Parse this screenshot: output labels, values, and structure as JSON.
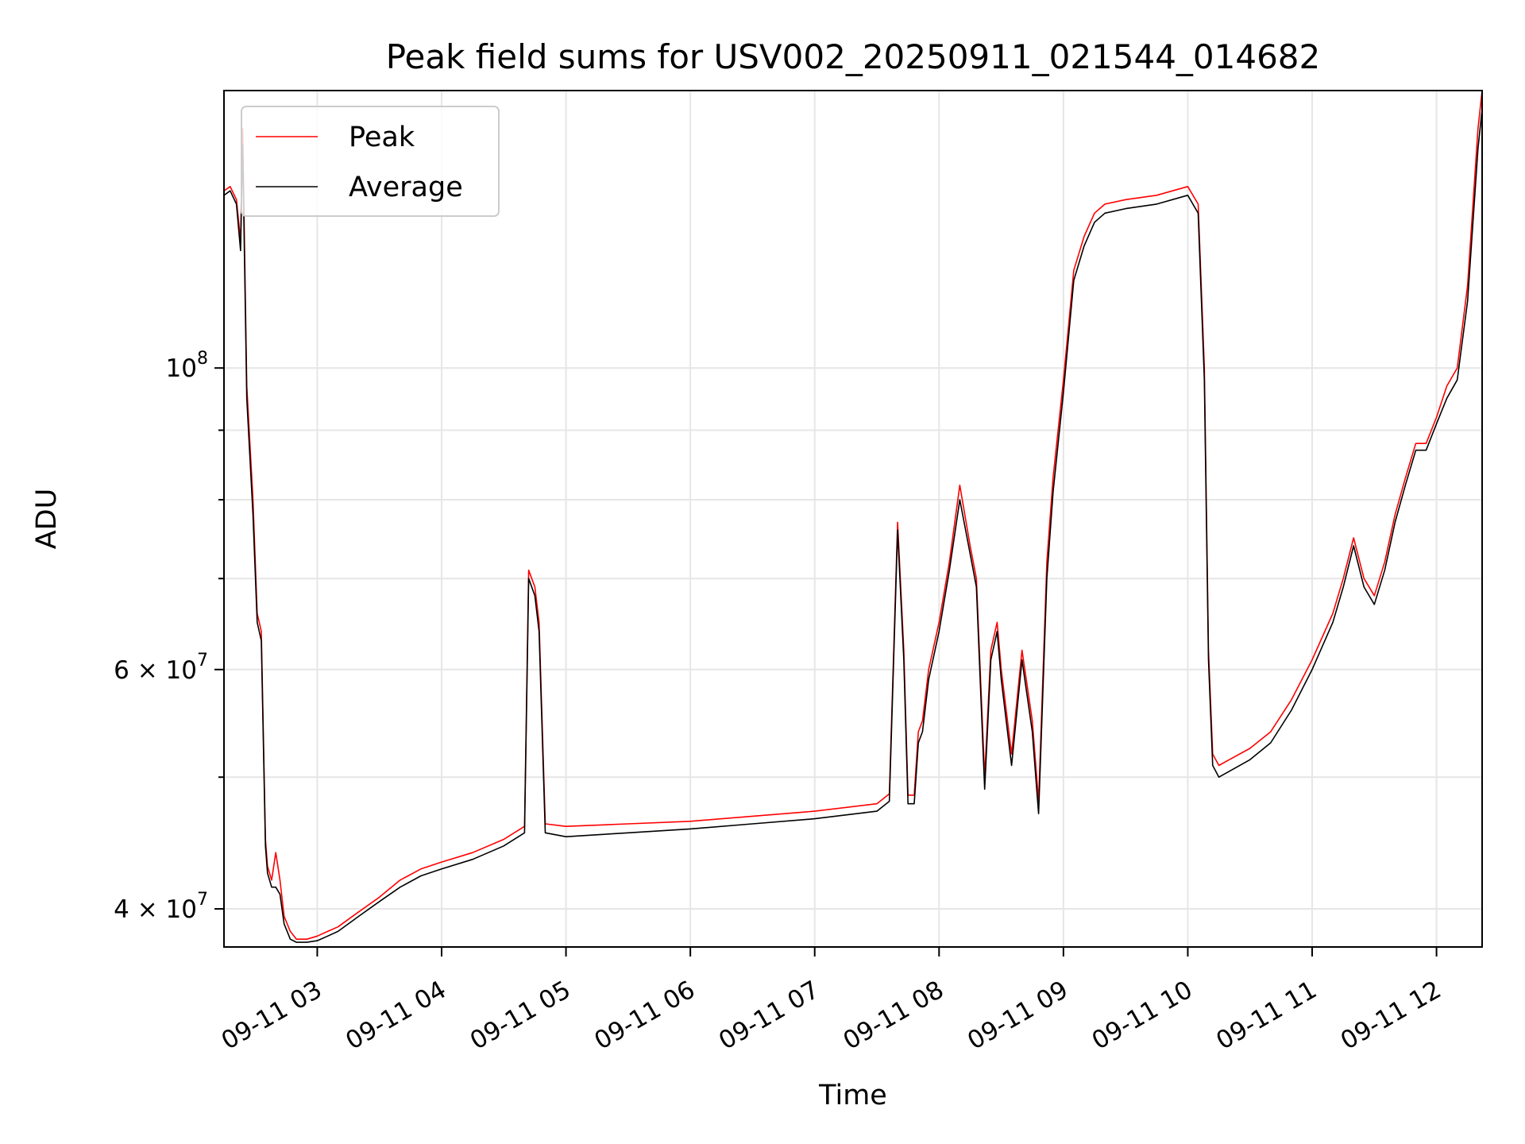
{
  "chart_data": {
    "type": "line",
    "title": "Peak field sums for USV002_20250911_021544_014682",
    "xlabel": "Time",
    "ylabel": "ADU",
    "y_scale": "log",
    "ylim": [
      37500000,
      160000000
    ],
    "xlim": [
      "2025-09-11 02:15",
      "2025-09-11 12:22"
    ],
    "grid": true,
    "legend_position": "top-left",
    "x_ticks": [
      {
        "value": "2025-09-11 03:00",
        "label": "09-11 03"
      },
      {
        "value": "2025-09-11 04:00",
        "label": "09-11 04"
      },
      {
        "value": "2025-09-11 05:00",
        "label": "09-11 05"
      },
      {
        "value": "2025-09-11 06:00",
        "label": "09-11 06"
      },
      {
        "value": "2025-09-11 07:00",
        "label": "09-11 07"
      },
      {
        "value": "2025-09-11 08:00",
        "label": "09-11 08"
      },
      {
        "value": "2025-09-11 09:00",
        "label": "09-11 09"
      },
      {
        "value": "2025-09-11 10:00",
        "label": "09-11 10"
      },
      {
        "value": "2025-09-11 11:00",
        "label": "09-11 11"
      },
      {
        "value": "2025-09-11 12:00",
        "label": "09-11 12"
      }
    ],
    "y_major_ticks": [
      {
        "value": 40000000,
        "mantissa": "4",
        "exponent": "7"
      },
      {
        "value": 60000000,
        "mantissa": "6",
        "exponent": "7"
      },
      {
        "value": 100000000,
        "mantissa": "",
        "exponent": "8"
      }
    ],
    "y_minor_ticks": [
      50000000,
      70000000,
      80000000,
      90000000
    ],
    "series": [
      {
        "name": "Peak",
        "color": "#ff0000",
        "x": [
          "2025-09-11 02:15",
          "2025-09-11 02:18",
          "2025-09-11 02:21",
          "2025-09-11 02:23",
          "2025-09-11 02:24",
          "2025-09-11 02:26",
          "2025-09-11 02:29",
          "2025-09-11 02:31",
          "2025-09-11 02:33",
          "2025-09-11 02:35",
          "2025-09-11 02:36",
          "2025-09-11 02:38",
          "2025-09-11 02:40",
          "2025-09-11 02:42",
          "2025-09-11 02:44",
          "2025-09-11 02:47",
          "2025-09-11 02:50",
          "2025-09-11 02:55",
          "2025-09-11 03:00",
          "2025-09-11 03:05",
          "2025-09-11 03:10",
          "2025-09-11 03:15",
          "2025-09-11 03:20",
          "2025-09-11 03:30",
          "2025-09-11 03:40",
          "2025-09-11 03:50",
          "2025-09-11 04:00",
          "2025-09-11 04:15",
          "2025-09-11 04:30",
          "2025-09-11 04:40",
          "2025-09-11 04:42",
          "2025-09-11 04:45",
          "2025-09-11 04:47",
          "2025-09-11 04:50",
          "2025-09-11 05:00",
          "2025-09-11 05:30",
          "2025-09-11 06:00",
          "2025-09-11 06:30",
          "2025-09-11 07:00",
          "2025-09-11 07:30",
          "2025-09-11 07:36",
          "2025-09-11 07:40",
          "2025-09-11 07:43",
          "2025-09-11 07:45",
          "2025-09-11 07:48",
          "2025-09-11 07:50",
          "2025-09-11 07:52",
          "2025-09-11 07:55",
          "2025-09-11 08:00",
          "2025-09-11 08:05",
          "2025-09-11 08:10",
          "2025-09-11 08:15",
          "2025-09-11 08:18",
          "2025-09-11 08:22",
          "2025-09-11 08:25",
          "2025-09-11 08:28",
          "2025-09-11 08:30",
          "2025-09-11 08:35",
          "2025-09-11 08:40",
          "2025-09-11 08:45",
          "2025-09-11 08:48",
          "2025-09-11 08:52",
          "2025-09-11 08:55",
          "2025-09-11 09:00",
          "2025-09-11 09:05",
          "2025-09-11 09:10",
          "2025-09-11 09:15",
          "2025-09-11 09:20",
          "2025-09-11 09:30",
          "2025-09-11 09:45",
          "2025-09-11 10:00",
          "2025-09-11 10:05",
          "2025-09-11 10:08",
          "2025-09-11 10:10",
          "2025-09-11 10:12",
          "2025-09-11 10:15",
          "2025-09-11 10:20",
          "2025-09-11 10:30",
          "2025-09-11 10:40",
          "2025-09-11 10:50",
          "2025-09-11 11:00",
          "2025-09-11 11:10",
          "2025-09-11 11:15",
          "2025-09-11 11:20",
          "2025-09-11 11:25",
          "2025-09-11 11:30",
          "2025-09-11 11:35",
          "2025-09-11 11:40",
          "2025-09-11 11:45",
          "2025-09-11 11:50",
          "2025-09-11 11:55",
          "2025-09-11 12:00",
          "2025-09-11 12:05",
          "2025-09-11 12:10",
          "2025-09-11 12:15",
          "2025-09-11 12:20",
          "2025-09-11 12:22"
        ],
        "y": [
          135000000,
          136000000,
          133000000,
          124000000,
          150000000,
          97000000,
          80000000,
          66000000,
          64000000,
          45000000,
          43000000,
          42000000,
          44000000,
          42000000,
          39500000,
          38500000,
          38000000,
          38000000,
          38200000,
          38500000,
          38800000,
          39300000,
          39800000,
          40800000,
          42000000,
          42800000,
          43300000,
          44000000,
          45000000,
          46000000,
          71000000,
          69000000,
          65000000,
          46200000,
          46000000,
          46200000,
          46400000,
          46800000,
          47200000,
          47800000,
          48600000,
          77000000,
          62000000,
          48500000,
          48500000,
          54000000,
          55000000,
          60000000,
          65000000,
          72000000,
          82000000,
          74000000,
          70000000,
          50000000,
          62000000,
          65000000,
          60000000,
          52000000,
          62000000,
          55000000,
          48000000,
          72000000,
          83000000,
          98000000,
          118000000,
          125000000,
          130000000,
          132000000,
          133000000,
          134000000,
          136000000,
          132000000,
          100000000,
          62000000,
          52000000,
          51000000,
          51500000,
          52500000,
          54000000,
          57000000,
          61000000,
          66000000,
          70000000,
          75000000,
          70000000,
          68000000,
          72000000,
          78000000,
          83000000,
          88000000,
          88000000,
          92000000,
          97000000,
          100000000,
          115000000,
          150000000,
          160000000
        ]
      },
      {
        "name": "Average",
        "color": "#000000",
        "x": [
          "2025-09-11 02:15",
          "2025-09-11 02:18",
          "2025-09-11 02:21",
          "2025-09-11 02:23",
          "2025-09-11 02:24",
          "2025-09-11 02:26",
          "2025-09-11 02:29",
          "2025-09-11 02:31",
          "2025-09-11 02:33",
          "2025-09-11 02:35",
          "2025-09-11 02:36",
          "2025-09-11 02:38",
          "2025-09-11 02:40",
          "2025-09-11 02:42",
          "2025-09-11 02:44",
          "2025-09-11 02:47",
          "2025-09-11 02:50",
          "2025-09-11 02:55",
          "2025-09-11 03:00",
          "2025-09-11 03:05",
          "2025-09-11 03:10",
          "2025-09-11 03:15",
          "2025-09-11 03:20",
          "2025-09-11 03:30",
          "2025-09-11 03:40",
          "2025-09-11 03:50",
          "2025-09-11 04:00",
          "2025-09-11 04:15",
          "2025-09-11 04:30",
          "2025-09-11 04:40",
          "2025-09-11 04:42",
          "2025-09-11 04:45",
          "2025-09-11 04:47",
          "2025-09-11 04:50",
          "2025-09-11 05:00",
          "2025-09-11 05:30",
          "2025-09-11 06:00",
          "2025-09-11 06:30",
          "2025-09-11 07:00",
          "2025-09-11 07:30",
          "2025-09-11 07:36",
          "2025-09-11 07:40",
          "2025-09-11 07:43",
          "2025-09-11 07:45",
          "2025-09-11 07:48",
          "2025-09-11 07:50",
          "2025-09-11 07:52",
          "2025-09-11 07:55",
          "2025-09-11 08:00",
          "2025-09-11 08:05",
          "2025-09-11 08:10",
          "2025-09-11 08:15",
          "2025-09-11 08:18",
          "2025-09-11 08:22",
          "2025-09-11 08:25",
          "2025-09-11 08:28",
          "2025-09-11 08:30",
          "2025-09-11 08:35",
          "2025-09-11 08:40",
          "2025-09-11 08:45",
          "2025-09-11 08:48",
          "2025-09-11 08:52",
          "2025-09-11 08:55",
          "2025-09-11 09:00",
          "2025-09-11 09:05",
          "2025-09-11 09:10",
          "2025-09-11 09:15",
          "2025-09-11 09:20",
          "2025-09-11 09:30",
          "2025-09-11 09:45",
          "2025-09-11 10:00",
          "2025-09-11 10:05",
          "2025-09-11 10:08",
          "2025-09-11 10:10",
          "2025-09-11 10:12",
          "2025-09-11 10:15",
          "2025-09-11 10:20",
          "2025-09-11 10:30",
          "2025-09-11 10:40",
          "2025-09-11 10:50",
          "2025-09-11 11:00",
          "2025-09-11 11:10",
          "2025-09-11 11:15",
          "2025-09-11 11:20",
          "2025-09-11 11:25",
          "2025-09-11 11:30",
          "2025-09-11 11:35",
          "2025-09-11 11:40",
          "2025-09-11 11:45",
          "2025-09-11 11:50",
          "2025-09-11 11:55",
          "2025-09-11 12:00",
          "2025-09-11 12:05",
          "2025-09-11 12:10",
          "2025-09-11 12:15",
          "2025-09-11 12:20",
          "2025-09-11 12:22"
        ],
        "y": [
          134000000,
          135000000,
          132000000,
          122000000,
          146000000,
          95000000,
          78000000,
          65000000,
          63000000,
          44500000,
          42500000,
          41500000,
          41500000,
          41000000,
          39000000,
          38000000,
          37800000,
          37800000,
          37900000,
          38200000,
          38500000,
          39000000,
          39500000,
          40500000,
          41500000,
          42300000,
          42800000,
          43500000,
          44500000,
          45500000,
          70000000,
          68000000,
          64000000,
          45500000,
          45200000,
          45500000,
          45800000,
          46200000,
          46600000,
          47200000,
          48000000,
          76000000,
          61000000,
          47800000,
          47800000,
          53000000,
          54000000,
          59000000,
          64000000,
          71000000,
          80000000,
          73000000,
          69000000,
          49000000,
          61000000,
          64000000,
          59000000,
          51000000,
          61000000,
          54000000,
          47000000,
          70000000,
          81000000,
          96000000,
          116000000,
          123000000,
          128000000,
          130000000,
          131000000,
          132000000,
          134000000,
          130000000,
          98000000,
          61000000,
          51000000,
          50000000,
          50500000,
          51500000,
          53000000,
          56000000,
          60000000,
          65000000,
          69000000,
          74000000,
          69000000,
          67000000,
          71000000,
          77000000,
          82000000,
          87000000,
          87000000,
          91000000,
          95000000,
          98000000,
          112000000,
          145000000,
          155000000
        ]
      }
    ]
  }
}
